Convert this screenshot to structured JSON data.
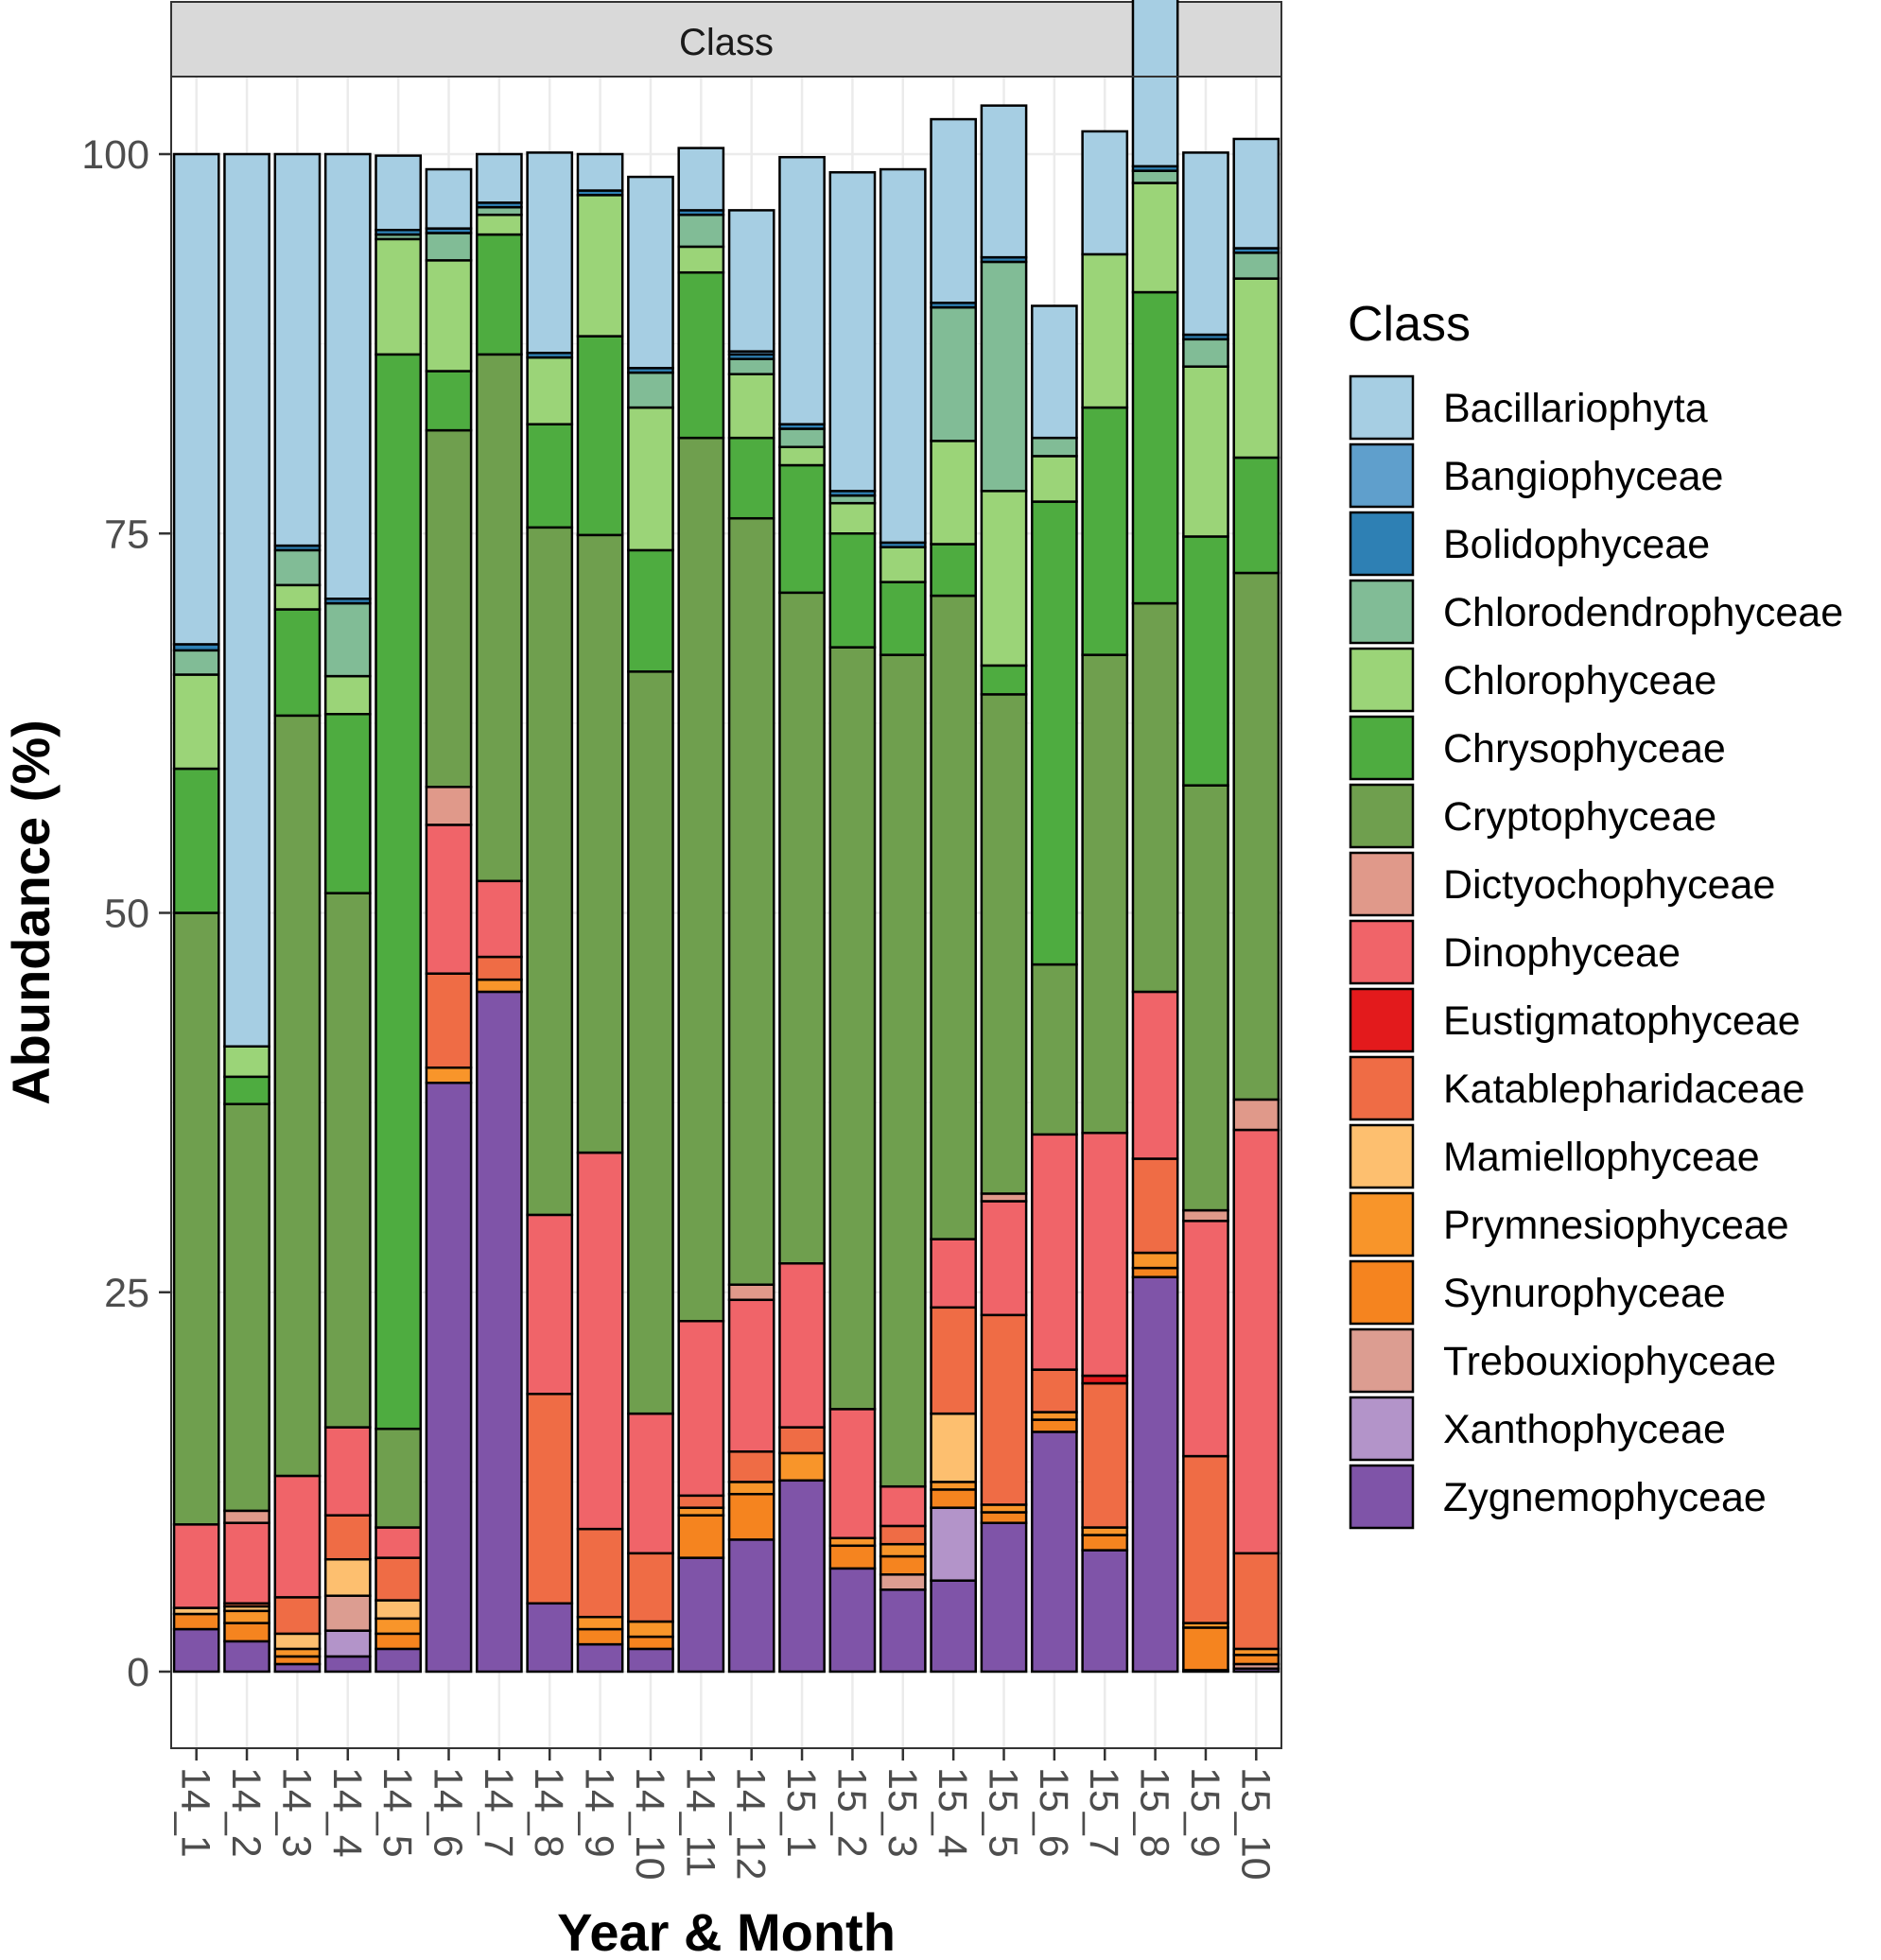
{
  "chart_data": {
    "type": "bar",
    "stacked": true,
    "facet_title": "Class",
    "xlabel": "Year & Month",
    "ylabel": "Abundance (%)",
    "ylim": [
      -5,
      105
    ],
    "yticks": [
      0,
      25,
      50,
      75,
      100
    ],
    "grid": true,
    "legend_title": "Class",
    "legend_position": "right",
    "categories": [
      "14_1",
      "14_2",
      "14_3",
      "14_4",
      "14_5",
      "14_6",
      "14_7",
      "14_8",
      "14_9",
      "14_10",
      "14_11",
      "14_12",
      "15_1",
      "15_2",
      "15_3",
      "15_4",
      "15_5",
      "15_6",
      "15_7",
      "15_8",
      "15_9",
      "15_10"
    ],
    "series": [
      {
        "name": "Zygnemophyceae",
        "color": "#7f54a8",
        "values": [
          2.8,
          2.0,
          0.5,
          1.0,
          1.5,
          38.8,
          44.8,
          4.5,
          1.8,
          1.5,
          7.5,
          8.7,
          12.6,
          6.8,
          5.4,
          6.0,
          9.8,
          15.8,
          8.0,
          26.0,
          0.1,
          0.2
        ]
      },
      {
        "name": "Xanthophyceae",
        "color": "#b394c9",
        "values": [
          0,
          0,
          0,
          1.7,
          0,
          0,
          0,
          0,
          0,
          0,
          0,
          0,
          0,
          0,
          0,
          4.8,
          0,
          0,
          0,
          0,
          0,
          0
        ]
      },
      {
        "name": "Trebouxiophyceae",
        "color": "#dc9d91",
        "values": [
          0,
          0,
          0,
          2.3,
          0,
          0,
          0,
          0,
          0,
          0,
          0,
          0,
          0,
          0,
          1.0,
          0,
          0,
          0,
          0,
          0,
          0,
          0.3
        ]
      },
      {
        "name": "Synurophyceae",
        "color": "#f5841f",
        "values": [
          1.0,
          1.2,
          0.5,
          0,
          1.0,
          0,
          0,
          0,
          1.0,
          0.8,
          2.8,
          3.0,
          0,
          1.5,
          1.2,
          1.2,
          0.7,
          0.8,
          1.0,
          0.6,
          2.8,
          0.6
        ]
      },
      {
        "name": "Prymnesiophyceae",
        "color": "#f8952a",
        "values": [
          0,
          0.8,
          0.5,
          0,
          1.0,
          1.0,
          0.8,
          0,
          0.8,
          1.0,
          0.5,
          0.8,
          1.8,
          0.5,
          0.8,
          0.5,
          0.5,
          0.5,
          0.5,
          1.0,
          0.3,
          0.4
        ]
      },
      {
        "name": "Mamiellophyceae",
        "color": "#fdbf6f",
        "values": [
          0.4,
          0.3,
          1.0,
          2.4,
          1.2,
          0,
          0,
          0,
          0,
          0,
          0,
          0,
          0,
          0,
          0,
          4.5,
          0,
          0,
          0,
          0,
          0,
          0
        ]
      },
      {
        "name": "Katablepharidaceae",
        "color": "#ef6c45",
        "values": [
          0,
          0.2,
          2.4,
          2.9,
          2.8,
          6.2,
          1.5,
          13.8,
          5.8,
          4.5,
          0.8,
          2.0,
          1.7,
          0,
          1.2,
          7.0,
          12.5,
          2.8,
          9.5,
          6.2,
          11.0,
          6.3
        ]
      },
      {
        "name": "Eustigmatophyceae",
        "color": "#e31a1c",
        "values": [
          0,
          0,
          0,
          0,
          0,
          0,
          0,
          0,
          0,
          0,
          0,
          0,
          0,
          0,
          0,
          0,
          0,
          0,
          0.5,
          0,
          0,
          0
        ]
      },
      {
        "name": "Dinophyceae",
        "color": "#f06469",
        "values": [
          5.5,
          5.3,
          8.0,
          5.8,
          2.0,
          9.8,
          5.0,
          11.8,
          24.8,
          9.2,
          11.5,
          10.0,
          10.8,
          8.5,
          2.6,
          4.5,
          7.5,
          15.5,
          16.0,
          11.0,
          15.5,
          27.9
        ]
      },
      {
        "name": "Dictyochophyceae",
        "color": "#e0998a",
        "values": [
          0,
          0.8,
          0,
          0,
          0,
          2.5,
          0,
          0,
          0,
          0,
          0,
          1.0,
          0,
          0,
          0,
          0,
          0.5,
          0,
          0,
          0,
          0.7,
          2.0
        ]
      },
      {
        "name": "Cryptophyceae",
        "color": "#6f9f4e",
        "values": [
          40.3,
          26.8,
          50.1,
          35.2,
          6.5,
          23.5,
          34.7,
          45.3,
          40.7,
          48.9,
          58.2,
          50.5,
          44.2,
          50.2,
          54.8,
          42.4,
          32.9,
          11.2,
          31.5,
          25.6,
          28.0,
          34.7
        ]
      },
      {
        "name": "Chrysophyceae",
        "color": "#4eac40",
        "values": [
          9.5,
          1.8,
          7.0,
          11.8,
          70.8,
          3.9,
          7.9,
          6.8,
          13.1,
          8.0,
          10.9,
          5.3,
          8.4,
          7.5,
          4.8,
          3.4,
          1.9,
          30.5,
          16.3,
          20.5,
          16.4,
          7.6
        ]
      },
      {
        "name": "Chlorophyceae",
        "color": "#9bd478",
        "values": [
          6.2,
          2.0,
          1.6,
          2.5,
          7.6,
          7.3,
          1.3,
          4.4,
          9.3,
          9.4,
          1.7,
          4.2,
          1.2,
          2.0,
          2.3,
          6.8,
          11.5,
          3.0,
          10.1,
          7.2,
          11.2,
          11.8
        ]
      },
      {
        "name": "Chlorodendrophyceae",
        "color": "#81bc96",
        "values": [
          1.6,
          0,
          2.3,
          4.8,
          0.3,
          1.8,
          0.5,
          0,
          0,
          2.3,
          2.1,
          1.0,
          1.2,
          0.5,
          0,
          8.8,
          15.1,
          1.2,
          0,
          0.8,
          1.8,
          1.7
        ]
      },
      {
        "name": "Bolidophyceae",
        "color": "#2e80b4",
        "values": [
          0.4,
          0,
          0.3,
          0.3,
          0.3,
          0.3,
          0.3,
          0.3,
          0.3,
          0.3,
          0.3,
          0.3,
          0.3,
          0.3,
          0.3,
          0.3,
          0.3,
          0,
          0,
          0.3,
          0.3,
          0.3
        ]
      },
      {
        "name": "Bangiophyceae",
        "color": "#5f9fcc",
        "values": [
          0,
          0,
          0,
          0,
          0,
          0,
          0,
          0,
          0,
          0,
          0,
          0.2,
          0,
          0,
          0,
          0,
          0,
          0,
          0,
          0,
          0,
          0
        ]
      },
      {
        "name": "Bacillariophyta",
        "color": "#a6cee3",
        "values": [
          32.3,
          58.8,
          25.8,
          29.3,
          4.9,
          3.9,
          3.2,
          13.2,
          2.4,
          12.6,
          4.1,
          9.3,
          17.6,
          21.0,
          24.6,
          12.1,
          10.0,
          8.7,
          8.1,
          14.7,
          12.0,
          7.2
        ]
      }
    ],
    "legend_order": [
      "Bacillariophyta",
      "Bangiophyceae",
      "Bolidophyceae",
      "Chlorodendrophyceae",
      "Chlorophyceae",
      "Chrysophyceae",
      "Cryptophyceae",
      "Dictyochophyceae",
      "Dinophyceae",
      "Eustigmatophyceae",
      "Katablepharidaceae",
      "Mamiellophyceae",
      "Prymnesiophyceae",
      "Synurophyceae",
      "Trebouxiophyceae",
      "Xanthophyceae",
      "Zygnemophyceae"
    ]
  }
}
